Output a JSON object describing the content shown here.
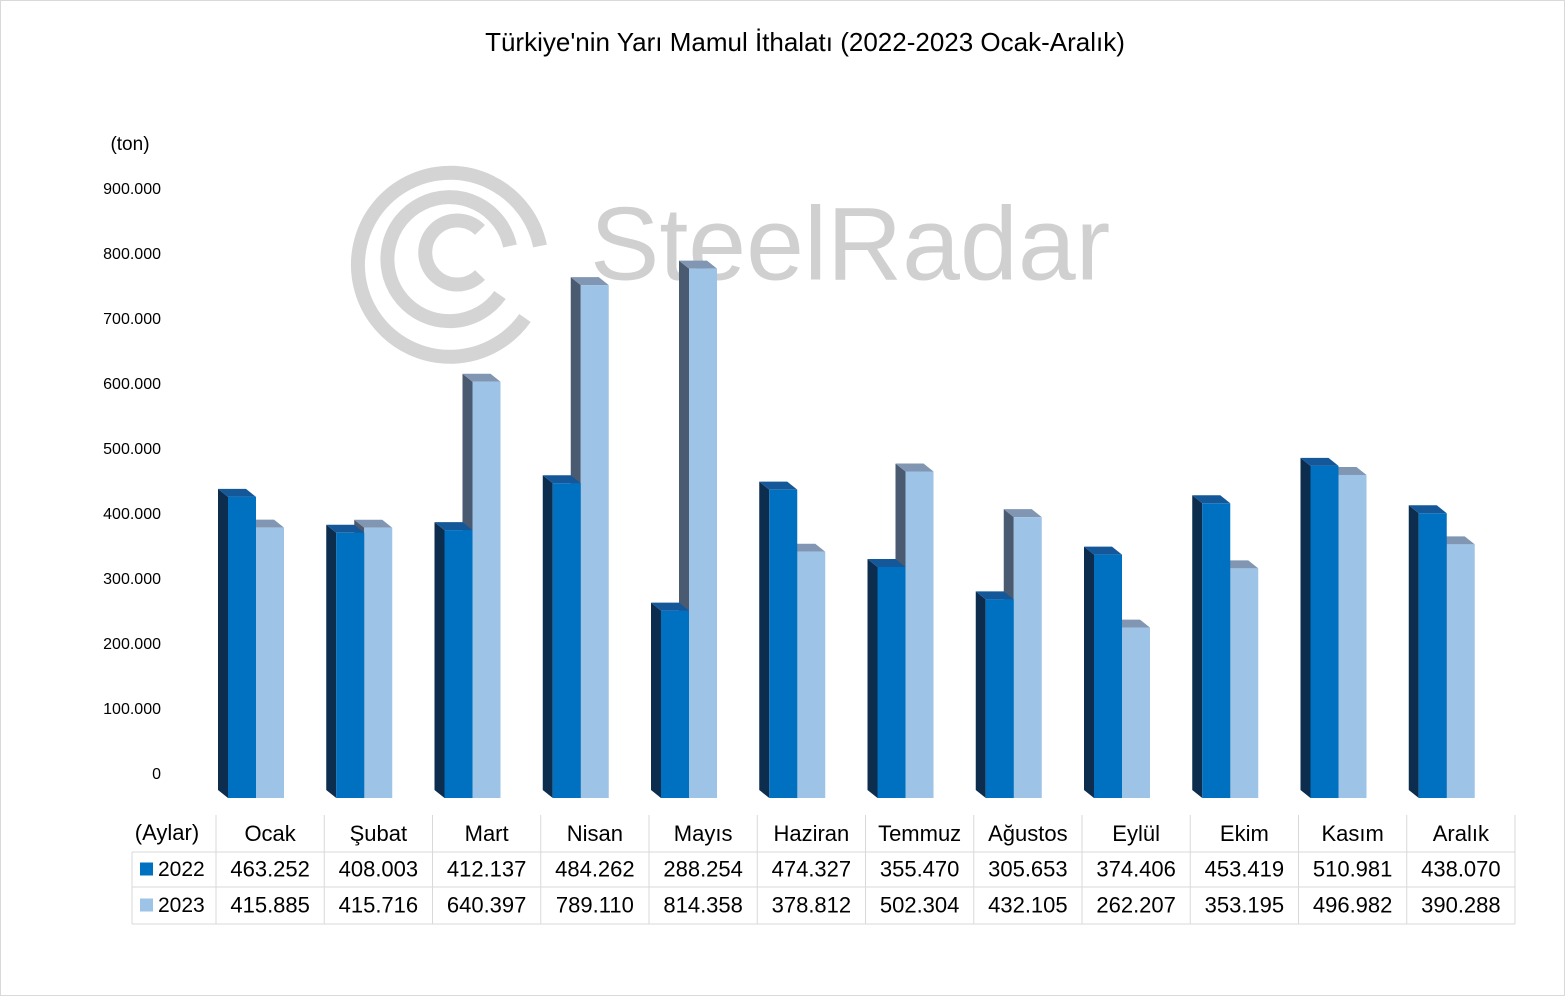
{
  "chart_data": {
    "type": "bar3d",
    "title": "Türkiye'nin Yarı Mamul İthalatı (2022-2023 Ocak-Aralık)",
    "y_label": "(ton)",
    "table_header": "(Aylar)",
    "watermark": "SteelRadar",
    "categories": [
      "Ocak",
      "Şubat",
      "Mart",
      "Nisan",
      "Mayıs",
      "Haziran",
      "Temmuz",
      "Ağustos",
      "Eylül",
      "Ekim",
      "Kasım",
      "Aralık"
    ],
    "series": [
      {
        "name": "2022",
        "color": "#0070c0",
        "values": [
          463252,
          408003,
          412137,
          484262,
          288254,
          474327,
          355470,
          305653,
          374406,
          453419,
          510981,
          438070
        ],
        "value_labels": [
          "463.252",
          "408.003",
          "412.137",
          "484.262",
          "288.254",
          "474.327",
          "355.470",
          "305.653",
          "374.406",
          "453.419",
          "510.981",
          "438.070"
        ]
      },
      {
        "name": "2023",
        "color": "#9dc3e6",
        "values": [
          415885,
          415716,
          640397,
          789110,
          814358,
          378812,
          502304,
          432105,
          262207,
          353195,
          496982,
          390288
        ],
        "value_labels": [
          "415.885",
          "415.716",
          "640.397",
          "789.110",
          "814.358",
          "378.812",
          "502.304",
          "432.105",
          "262.207",
          "353.195",
          "496.982",
          "390.288"
        ]
      }
    ],
    "ylim": [
      0,
      900000
    ],
    "yticks": [
      0,
      {
        "value": 100000,
        "label": "100.000"
      },
      {
        "value": 200000,
        "label": "200.000"
      },
      {
        "value": 300000,
        "label": "300.000"
      },
      {
        "value": 400000,
        "label": "400.000"
      },
      {
        "value": 500000,
        "label": "500.000"
      },
      {
        "value": 600000,
        "label": "600.000"
      },
      {
        "value": 700000,
        "label": "700.000"
      },
      {
        "value": 800000,
        "label": "800.000"
      },
      {
        "value": 900000,
        "label": "900.000"
      }
    ]
  }
}
